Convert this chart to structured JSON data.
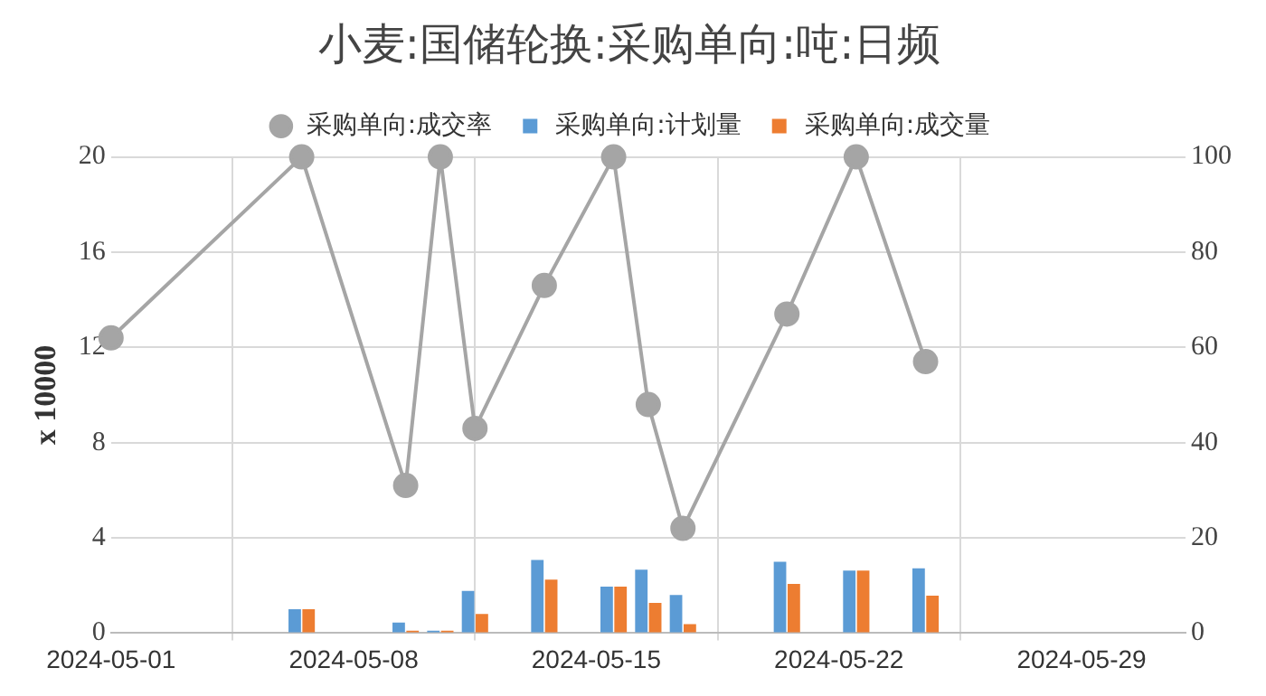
{
  "chart_data": {
    "type": "bar",
    "title": "小麦:国储轮换:采购单向:吨:日频",
    "ylabel": "x 10000",
    "x": [
      "2024-05-06T12:00",
      "2024-05-09T12:00",
      "2024-05-10T12:00",
      "2024-05-11T12:00",
      "2024-05-13T12:00",
      "2024-05-15T12:00",
      "2024-05-16T12:00",
      "2024-05-17T12:00",
      "2024-05-20T12:00",
      "2024-05-22T12:00",
      "2024-05-24T12:00"
    ],
    "series": [
      {
        "name": "采购单向:计划量",
        "color": "#5b9bd5",
        "values": [
          1.0,
          0.44,
          0.1,
          1.77,
          3.07,
          1.95,
          2.66,
          1.6,
          3.0,
          2.63,
          2.72
        ]
      },
      {
        "name": "采购单向:成交量",
        "color": "#ed7d31",
        "values": [
          1.0,
          0.1,
          0.1,
          0.8,
          2.25,
          1.95,
          1.27,
          0.38,
          2.07,
          2.63,
          1.57
        ]
      },
      {
        "name": "采购单向:成交率",
        "type": "line",
        "axis": "y2",
        "color": "#a5a5a5",
        "x": [
          "2024-05-01",
          "2024-05-06T12:00",
          "2024-05-09T12:00",
          "2024-05-10T12:00",
          "2024-05-11T12:00",
          "2024-05-13T12:00",
          "2024-05-15T12:00",
          "2024-05-16T12:00",
          "2024-05-17T12:00",
          "2024-05-20T12:00",
          "2024-05-22T12:00",
          "2024-05-24T12:00"
        ],
        "values": [
          62,
          100,
          31,
          100,
          43,
          73,
          100,
          48,
          22,
          67,
          100,
          57
        ]
      }
    ],
    "xlim": [
      "2024-05-01",
      "2024-06-01"
    ],
    "xticks": [
      "2024-05-01",
      "2024-05-08",
      "2024-05-15",
      "2024-05-22",
      "2024-05-29"
    ],
    "ylim": [
      0,
      20
    ],
    "yticks": [
      0,
      4,
      8,
      12,
      16,
      20
    ],
    "y2lim": [
      0,
      100
    ],
    "y2ticks": [
      0,
      20,
      40,
      60,
      80,
      100
    ],
    "grid": true,
    "legend": "top",
    "marker": "circle",
    "line_style": "solid"
  }
}
